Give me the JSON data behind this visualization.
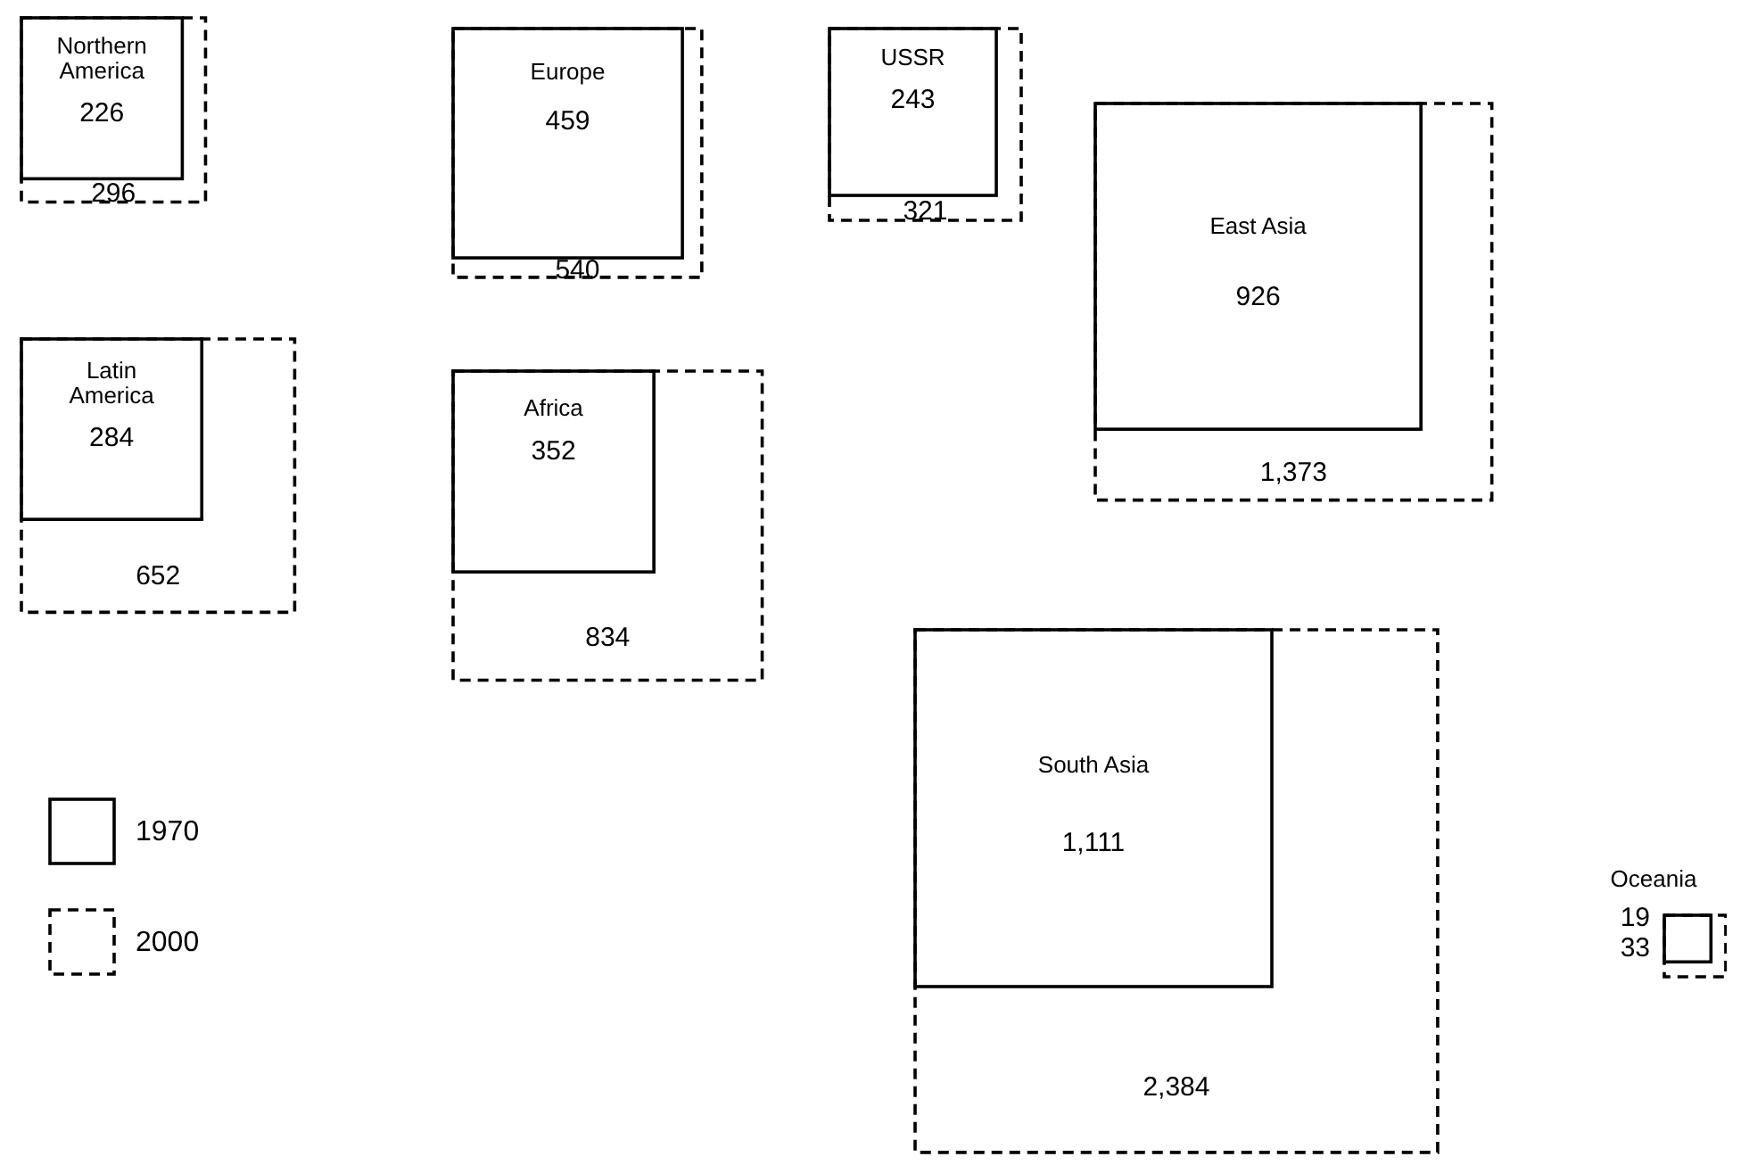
{
  "chart_data": {
    "type": "other",
    "categories": [
      "Northern America",
      "Europe",
      "USSR",
      "East Asia",
      "Latin America",
      "Africa",
      "South Asia",
      "Oceania"
    ],
    "series": [
      {
        "name": "1970",
        "color": "#000000",
        "line_style": "solid",
        "values": [
          226,
          459,
          243,
          926,
          284,
          352,
          1111,
          19
        ],
        "value_labels": [
          "226",
          "459",
          "243",
          "926",
          "284",
          "352",
          "1,111",
          "19"
        ]
      },
      {
        "name": "2000",
        "color": "#000000",
        "line_style": "dashed",
        "values": [
          296,
          540,
          321,
          1373,
          652,
          834,
          2384,
          33
        ],
        "value_labels": [
          "296",
          "540",
          "321",
          "1,373",
          "652",
          "834",
          "2,384",
          "33"
        ]
      }
    ],
    "legend": "bottom left"
  }
}
